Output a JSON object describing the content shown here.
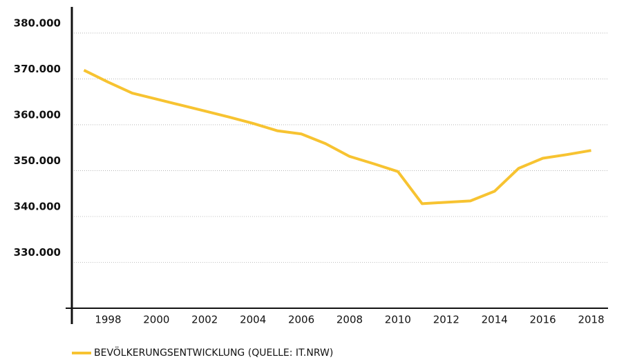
{
  "chart_data": {
    "type": "line",
    "x": [
      1997,
      1998,
      1999,
      2000,
      2001,
      2002,
      2003,
      2004,
      2005,
      2006,
      2007,
      2008,
      2009,
      2010,
      2011,
      2012,
      2013,
      2014,
      2015,
      2016,
      2017,
      2018
    ],
    "series": [
      {
        "name": "BEVÖLKERUNGSENTWICKLUNG (QUELLE: IT.NRW)",
        "color": "#f7c331",
        "values": [
          371900,
          369300,
          366900,
          365600,
          364300,
          363000,
          361700,
          360300,
          358700,
          358000,
          355900,
          353100,
          351500,
          349800,
          342800,
          343100,
          343400,
          345500,
          350500,
          352700,
          353500,
          354400
        ]
      }
    ],
    "xlim": [
      1996.5,
      2018.7
    ],
    "xticks": [
      1998,
      2000,
      2002,
      2004,
      2006,
      2008,
      2010,
      2012,
      2014,
      2016,
      2018
    ],
    "ylim": [
      320000,
      385700
    ],
    "yticks": [
      {
        "value": 330000,
        "label": "330.000"
      },
      {
        "value": 340000,
        "label": "340.000"
      },
      {
        "value": 350000,
        "label": "350.000"
      },
      {
        "value": 360000,
        "label": "360.000"
      },
      {
        "value": 370000,
        "label": "370.000"
      },
      {
        "value": 380000,
        "label": "380.000"
      }
    ],
    "grid": true,
    "legend": "bottom"
  }
}
